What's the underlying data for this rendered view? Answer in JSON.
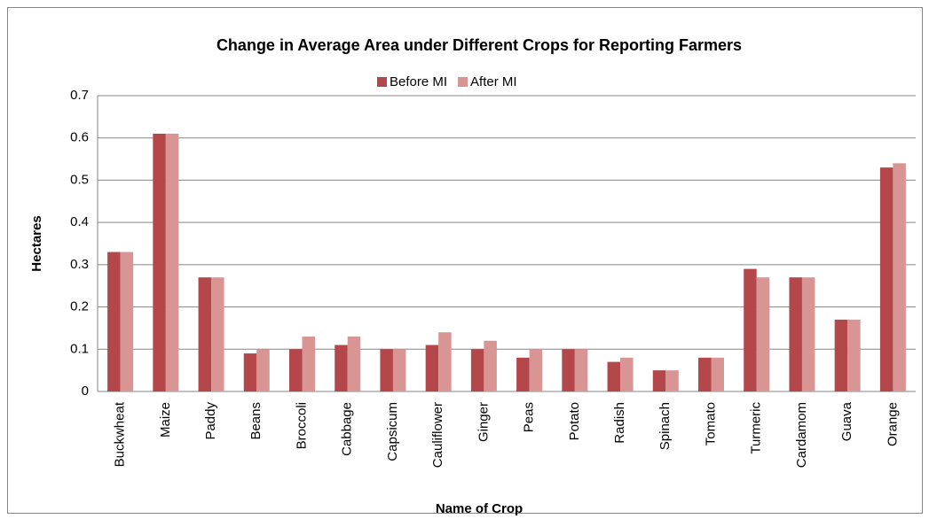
{
  "chart_data": {
    "type": "bar",
    "title": "Change in Average Area under Different Crops for Reporting Farmers",
    "x_label": "Name of Crop",
    "y_label": "Hectares",
    "categories": [
      "Buckwheat",
      "Maize",
      "Paddy",
      "Beans",
      "Broccoli",
      "Cabbage",
      "Capsicum",
      "Cauliflower",
      "Ginger",
      "Peas",
      "Potato",
      "Radish",
      "Spinach",
      "Tomato",
      "Turmeric",
      "Cardamom",
      "Guava",
      "Orange"
    ],
    "series": [
      {
        "name": "Before MI",
        "color": "#b3474a",
        "values": [
          0.33,
          0.61,
          0.27,
          0.09,
          0.1,
          0.11,
          0.1,
          0.11,
          0.1,
          0.08,
          0.1,
          0.07,
          0.05,
          0.08,
          0.29,
          0.27,
          0.17,
          0.53
        ]
      },
      {
        "name": "After MI",
        "color": "#d99594",
        "values": [
          0.33,
          0.61,
          0.27,
          0.1,
          0.13,
          0.13,
          0.1,
          0.14,
          0.12,
          0.1,
          0.1,
          0.08,
          0.05,
          0.08,
          0.27,
          0.27,
          0.17,
          0.54
        ]
      }
    ],
    "ylim": [
      0,
      0.7
    ],
    "yticks": [
      0,
      0.1,
      0.2,
      0.3,
      0.4,
      0.5,
      0.6,
      0.7
    ],
    "grid": true,
    "legend": "top"
  }
}
